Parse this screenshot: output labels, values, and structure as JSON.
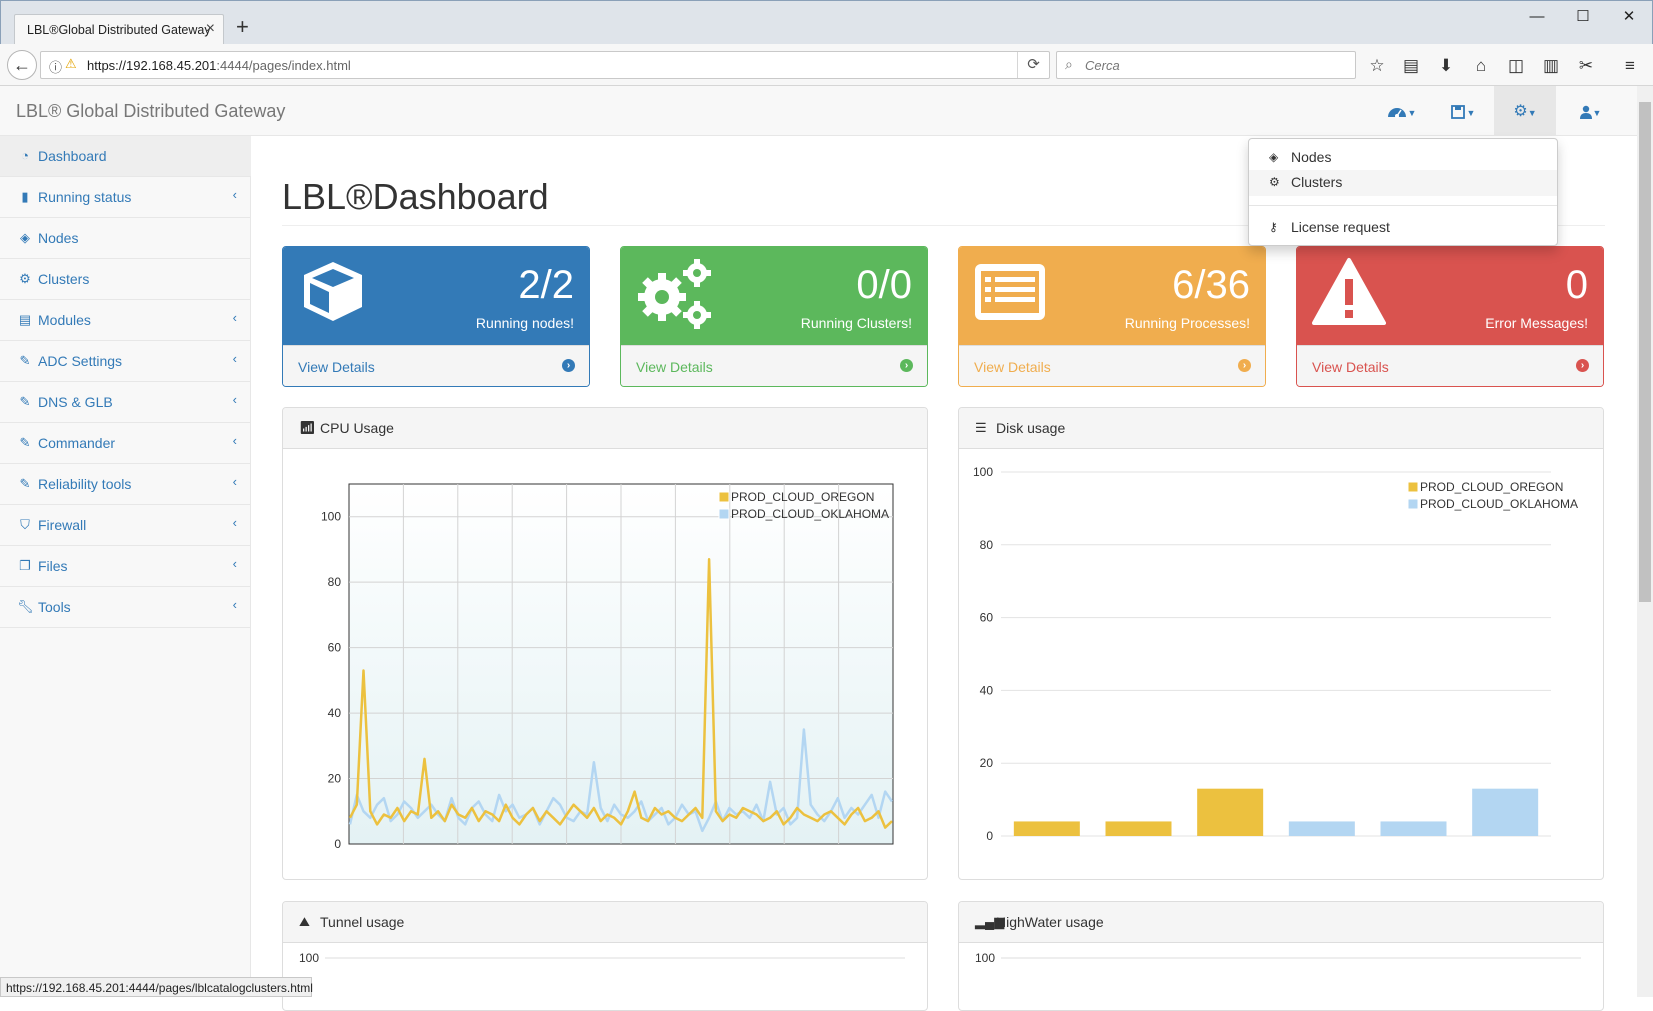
{
  "browser": {
    "tab_title": "LBL®Global Distributed Gateway",
    "url_host": "https://192.168.45.201",
    "url_rest": ":4444/pages/index.html",
    "search_placeholder": "Cerca",
    "status_url": "https://192.168.45.201:4444/pages/lblcatalogclusters.html"
  },
  "app": {
    "brand": "LBL® Global Distributed Gateway",
    "page_title": "LBL®Dashboard"
  },
  "sidebar": {
    "items": [
      {
        "label": "Dashboard",
        "icon": "dashboard-icon",
        "active": true
      },
      {
        "label": "Running status",
        "icon": "bar-chart-icon",
        "chevron": true
      },
      {
        "label": "Nodes",
        "icon": "cube-icon"
      },
      {
        "label": "Clusters",
        "icon": "cogs-icon"
      },
      {
        "label": "Modules",
        "icon": "list-icon",
        "chevron": true
      },
      {
        "label": "ADC Settings",
        "icon": "edit-icon",
        "chevron": true
      },
      {
        "label": "DNS & GLB",
        "icon": "edit-icon",
        "chevron": true
      },
      {
        "label": "Commander",
        "icon": "edit-icon",
        "chevron": true
      },
      {
        "label": "Reliability tools",
        "icon": "edit-icon",
        "chevron": true
      },
      {
        "label": "Firewall",
        "icon": "shield-icon",
        "chevron": true
      },
      {
        "label": "Files",
        "icon": "files-icon",
        "chevron": true
      },
      {
        "label": "Tools",
        "icon": "wrench-icon",
        "chevron": true
      }
    ]
  },
  "dropdown": {
    "items": [
      {
        "label": "Nodes",
        "icon": "cubes-icon"
      },
      {
        "label": "Clusters",
        "icon": "cogs-icon"
      },
      {
        "label": "License request",
        "icon": "key-icon"
      }
    ]
  },
  "cards": [
    {
      "value": "2/2",
      "label": "Running nodes!",
      "link": "View Details",
      "color": "#337ab7",
      "icon": "cube-icon"
    },
    {
      "value": "0/0",
      "label": "Running Clusters!",
      "link": "View Details",
      "color": "#5cb85c",
      "icon": "cogs-icon"
    },
    {
      "value": "6/36",
      "label": "Running Processes!",
      "link": "View Details",
      "color": "#f0ad4e",
      "icon": "list-alt-icon"
    },
    {
      "value": "0",
      "label": "Error Messages!",
      "link": "View Details",
      "color": "#d9534f",
      "icon": "warning-icon"
    }
  ],
  "panels": {
    "cpu": "CPU Usage",
    "disk": "Disk usage",
    "tunnel": "Tunnel usage",
    "highwater": "HighWater usage"
  },
  "colors": {
    "oregon": "#ecc13f",
    "oklahoma": "#b3d6f2"
  },
  "chart_data": [
    {
      "type": "line",
      "title": "",
      "ylim": [
        0,
        110
      ],
      "yticks": [
        0,
        20,
        40,
        60,
        80,
        100
      ],
      "grid": true,
      "legend": "top-right",
      "series": [
        {
          "name": "PROD_CLOUD_OREGON",
          "values": [
            8,
            12,
            53,
            10,
            6,
            9,
            8,
            11,
            7,
            10,
            9,
            26,
            8,
            10,
            7,
            12,
            9,
            8,
            11,
            7,
            10,
            9,
            7,
            12,
            8,
            6,
            9,
            11,
            7,
            10,
            8,
            6,
            9,
            12,
            10,
            8,
            11,
            7,
            9,
            8,
            6,
            10,
            16,
            8,
            7,
            11,
            9,
            10,
            8,
            7,
            9,
            11,
            8,
            87,
            10,
            7,
            9,
            8,
            11,
            10,
            9,
            7,
            8,
            10,
            6,
            8,
            11,
            9,
            8,
            7,
            9,
            10,
            8,
            6,
            9,
            11,
            7,
            8,
            10,
            5,
            7
          ]
        },
        {
          "name": "PROD_CLOUD_OKLAHOMA",
          "values": [
            6,
            15,
            10,
            8,
            12,
            14,
            7,
            9,
            13,
            11,
            8,
            10,
            12,
            9,
            7,
            14,
            8,
            6,
            11,
            13,
            9,
            7,
            15,
            10,
            12,
            8,
            9,
            11,
            6,
            10,
            14,
            12,
            8,
            7,
            10,
            9,
            25,
            11,
            7,
            12,
            9,
            8,
            10,
            13,
            7,
            9,
            11,
            6,
            8,
            12,
            9,
            10,
            4,
            8,
            13,
            7,
            11,
            9,
            10,
            8,
            12,
            7,
            19,
            9,
            11,
            6,
            8,
            35,
            12,
            9,
            7,
            10,
            14,
            8,
            11,
            9,
            12,
            15,
            8,
            16,
            13
          ]
        }
      ]
    },
    {
      "type": "bar",
      "title": "",
      "ylim": [
        0,
        100
      ],
      "yticks": [
        0,
        20,
        40,
        60,
        80,
        100
      ],
      "grid": true,
      "legend": "top-right",
      "series": [
        {
          "name": "PROD_CLOUD_OREGON",
          "values": [
            4,
            4,
            13
          ]
        },
        {
          "name": "PROD_CLOUD_OKLAHOMA",
          "values": [
            4,
            4,
            13
          ]
        }
      ]
    },
    {
      "type": "line",
      "title": "",
      "yticks": [
        100
      ]
    },
    {
      "type": "line",
      "title": "",
      "yticks": [
        100
      ]
    }
  ]
}
